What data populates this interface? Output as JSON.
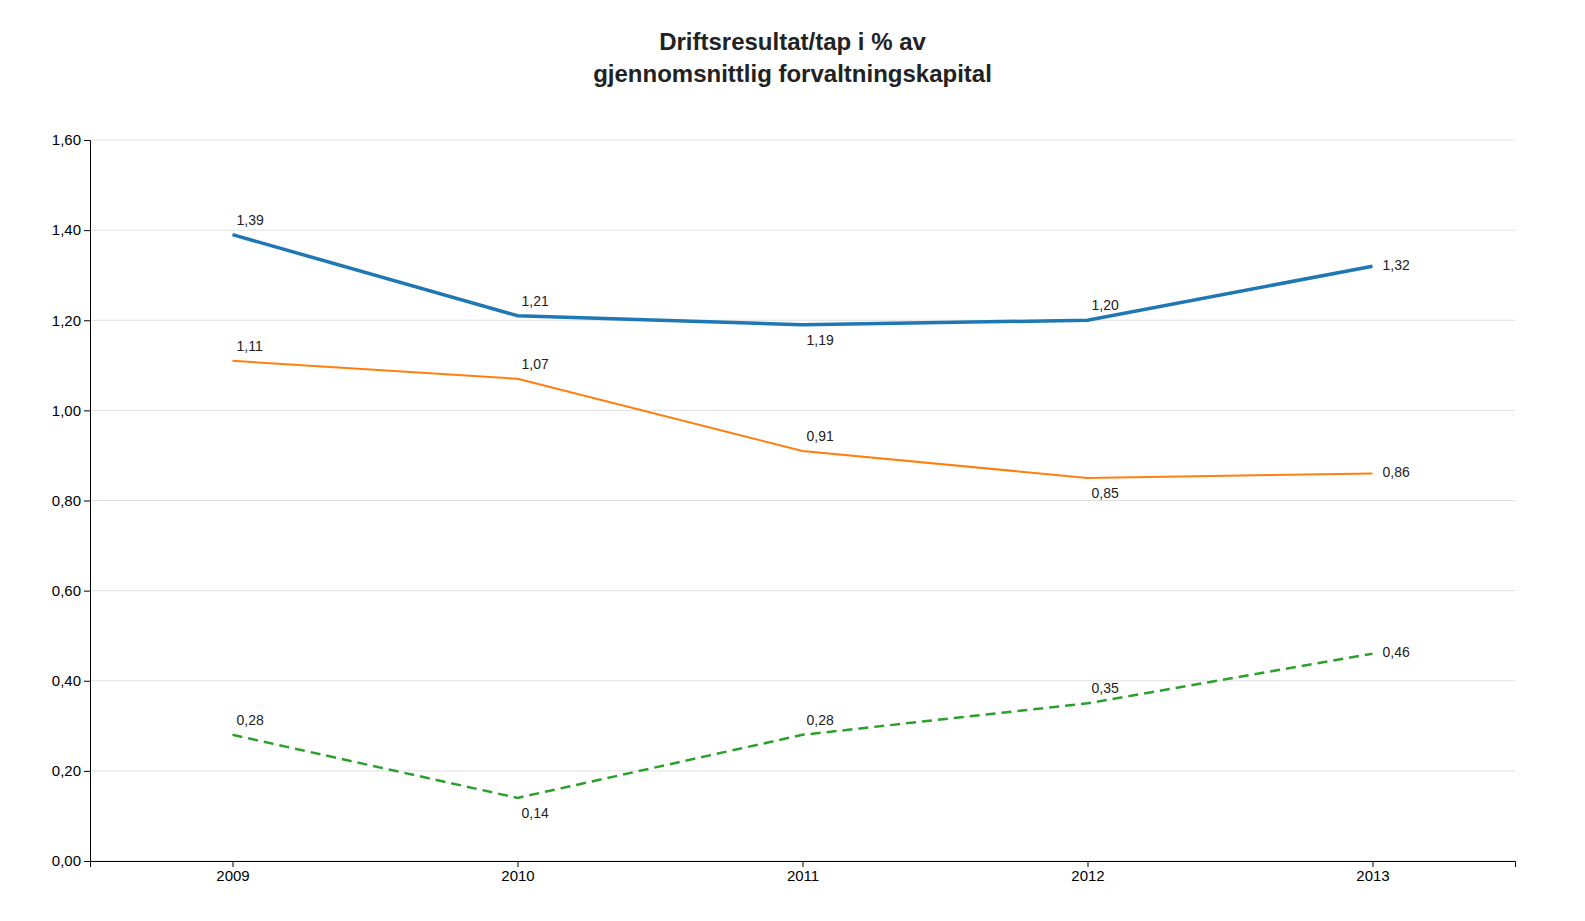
{
  "chart_data": {
    "type": "line",
    "title": "Driftsresultat/tap  i  % av\ngjennomsnittlig  forvaltningskapital",
    "x": [
      2009,
      2010,
      2011,
      2012,
      2013
    ],
    "series": [
      {
        "values": [
          1.39,
          1.21,
          1.19,
          1.2,
          1.32
        ],
        "value_labels": [
          "1,39",
          "1,21",
          "1,19",
          "1,20",
          "1,32"
        ],
        "line_style": "solid"
      },
      {
        "values": [
          1.11,
          1.07,
          0.91,
          0.85,
          0.86
        ],
        "value_labels": [
          "1,11",
          "1,07",
          "0,91",
          "0,85",
          "0,86"
        ],
        "line_style": "solid"
      },
      {
        "values": [
          0.28,
          0.14,
          0.28,
          0.35,
          0.46
        ],
        "value_labels": [
          "0,28",
          "0,14",
          "0,28",
          "0,35",
          "0,46"
        ],
        "line_style": "dashed"
      }
    ],
    "xlim": [
      2008.5,
      2013.5
    ],
    "xticks": [
      2009,
      2010,
      2011,
      2012,
      2013
    ],
    "ylim": [
      0.0,
      1.6
    ],
    "yticks": [
      {
        "value": 0.0,
        "label": "0,00"
      },
      {
        "value": 0.2,
        "label": "0,20"
      },
      {
        "value": 0.4,
        "label": "0,40"
      },
      {
        "value": 0.6,
        "label": "0,60"
      },
      {
        "value": 0.8,
        "label": "0,80"
      },
      {
        "value": 1.0,
        "label": "1,00"
      },
      {
        "value": 1.2,
        "label": "1,20"
      },
      {
        "value": 1.4,
        "label": "1,40"
      },
      {
        "value": 1.6,
        "label": "1,60"
      }
    ],
    "grid": true,
    "data_labels": true
  }
}
